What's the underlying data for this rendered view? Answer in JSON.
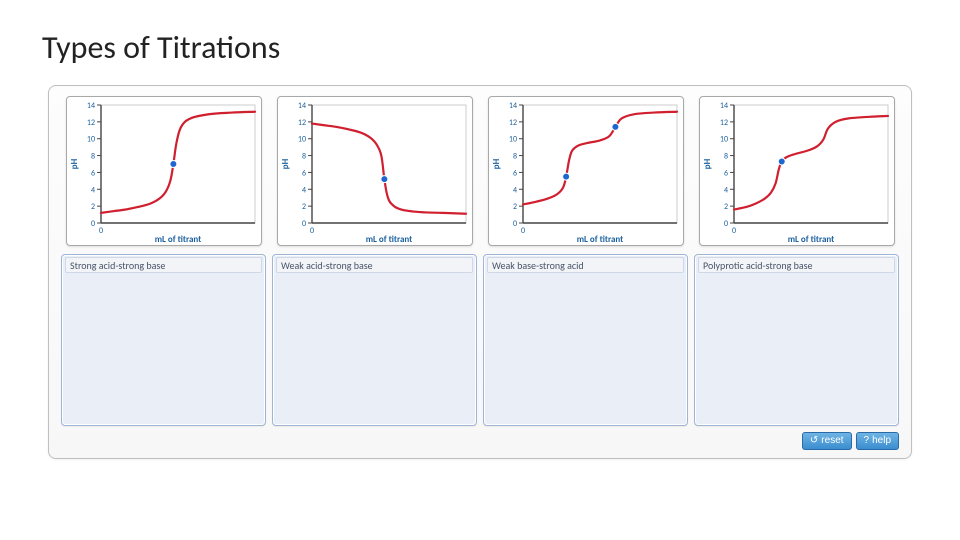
{
  "title": "Types of Titrations",
  "panel": {
    "background": "#f7f7f7",
    "border_color": "#bfbfbf",
    "border_radius": 8
  },
  "axis_style": {
    "ylabel": "pH",
    "xlabel": "mL of titrant",
    "ylabel_color": "#1a5f9e",
    "xlabel_color": "#1a5f9e",
    "label_fontsize": 9,
    "tick_fontsize": 8,
    "tick_color": "#1a5f9e",
    "axis_color": "#444444",
    "ylim": [
      0,
      14
    ],
    "ytick_step": 2,
    "yticks": [
      0,
      2,
      4,
      6,
      8,
      10,
      12,
      14
    ],
    "line_color": "#d01f2e",
    "line_width": 2.2,
    "marker_color": "#1e66d0",
    "marker_stroke": "#ffffff",
    "marker_radius": 3.5,
    "plot_bg": "#ffffff"
  },
  "charts": [
    {
      "id": "strong-acid-strong-base",
      "curve": [
        [
          0,
          1.2
        ],
        [
          8,
          1.4
        ],
        [
          16,
          1.6
        ],
        [
          24,
          1.9
        ],
        [
          32,
          2.3
        ],
        [
          38,
          2.9
        ],
        [
          42,
          3.7
        ],
        [
          45,
          5.0
        ],
        [
          47,
          7.0
        ],
        [
          49,
          9.5
        ],
        [
          52,
          11.4
        ],
        [
          58,
          12.4
        ],
        [
          70,
          12.9
        ],
        [
          85,
          13.1
        ],
        [
          100,
          13.2
        ]
      ],
      "equivalence_points": [
        [
          47,
          7.0
        ]
      ]
    },
    {
      "id": "weak-acid-strong-base",
      "curve": [
        [
          0,
          11.8
        ],
        [
          8,
          11.6
        ],
        [
          16,
          11.4
        ],
        [
          24,
          11.1
        ],
        [
          32,
          10.7
        ],
        [
          38,
          10.1
        ],
        [
          42,
          9.3
        ],
        [
          45,
          8.0
        ],
        [
          47,
          5.2
        ],
        [
          49,
          3.2
        ],
        [
          52,
          2.2
        ],
        [
          58,
          1.6
        ],
        [
          70,
          1.3
        ],
        [
          85,
          1.2
        ],
        [
          100,
          1.1
        ]
      ],
      "equivalence_points": [
        [
          47,
          5.2
        ]
      ]
    },
    {
      "id": "weak-base-strong-acid",
      "curve": [
        [
          0,
          2.2
        ],
        [
          8,
          2.5
        ],
        [
          16,
          2.9
        ],
        [
          22,
          3.4
        ],
        [
          26,
          4.2
        ],
        [
          28,
          5.5
        ],
        [
          30,
          7.5
        ],
        [
          32,
          8.6
        ],
        [
          36,
          9.2
        ],
        [
          42,
          9.5
        ],
        [
          50,
          9.8
        ],
        [
          56,
          10.3
        ],
        [
          60,
          11.4
        ],
        [
          64,
          12.4
        ],
        [
          72,
          12.9
        ],
        [
          85,
          13.1
        ],
        [
          100,
          13.2
        ]
      ],
      "equivalence_points": [
        [
          28,
          5.5
        ],
        [
          60,
          11.4
        ]
      ]
    },
    {
      "id": "polyprotic",
      "curve": [
        [
          0,
          1.6
        ],
        [
          8,
          1.9
        ],
        [
          14,
          2.3
        ],
        [
          20,
          2.9
        ],
        [
          24,
          3.6
        ],
        [
          27,
          4.7
        ],
        [
          29,
          6.3
        ],
        [
          31,
          7.3
        ],
        [
          34,
          7.8
        ],
        [
          40,
          8.2
        ],
        [
          48,
          8.6
        ],
        [
          54,
          9.1
        ],
        [
          58,
          9.9
        ],
        [
          61,
          11.2
        ],
        [
          66,
          12.0
        ],
        [
          74,
          12.4
        ],
        [
          88,
          12.6
        ],
        [
          100,
          12.7
        ]
      ],
      "equivalence_points": [
        [
          31,
          7.3
        ]
      ]
    }
  ],
  "bins": [
    {
      "label": "Strong acid-strong base"
    },
    {
      "label": "Weak acid-strong base"
    },
    {
      "label": "Weak base-strong acid"
    },
    {
      "label": "Polyprotic acid-strong base"
    }
  ],
  "buttons": {
    "reset": {
      "label": "reset",
      "symbol": "↺"
    },
    "help": {
      "label": "help",
      "symbol": "?"
    }
  }
}
